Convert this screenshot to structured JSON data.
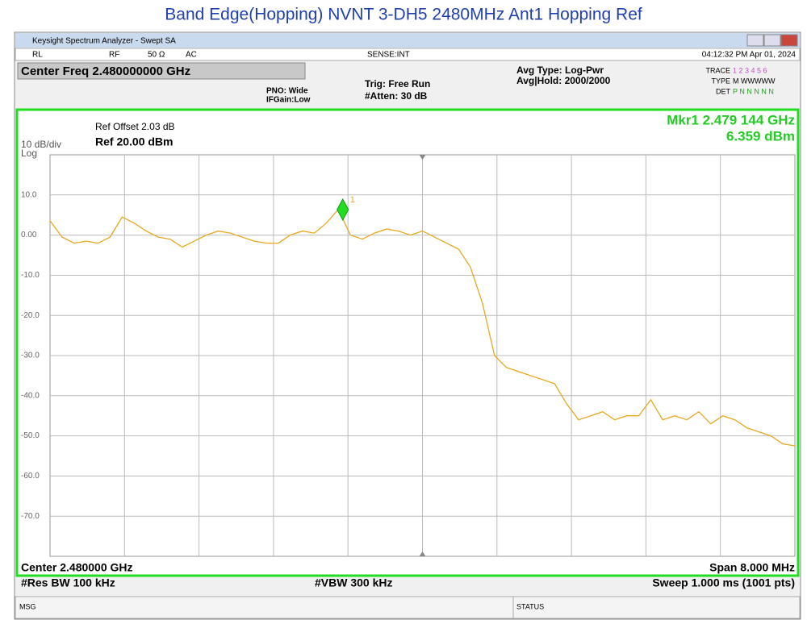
{
  "title": "Band Edge(Hopping) NVNT 3-DH5 2480MHz Ant1 Hopping Ref",
  "screen": {
    "window_title": "Keysight Spectrum Analyzer - Swept SA",
    "status_row": {
      "rl": "RL",
      "rf": "RF",
      "impedance": "50 Ω",
      "coupling": "AC",
      "sense": "SENSE:INT",
      "datetime": "04:12:32 PM Apr 01, 2024"
    },
    "center_freq": "Center Freq 2.480000000 GHz",
    "pno": "PNO: Wide",
    "ifgain": "IFGain:Low",
    "trig": "Trig: Free Run",
    "atten": "#Atten: 30 dB",
    "avg_type": "Avg Type: Log-Pwr",
    "avg_hold": "Avg|Hold: 2000/2000",
    "trace_info": {
      "trace_label": "TRACE",
      "trace": "1 2 3 4 5 6",
      "type_label": "TYPE",
      "type": "M WWWWW",
      "det_label": "DET",
      "det": "P N N N N N"
    },
    "ref_offset": "Ref Offset 2.03 dB",
    "scale": "10 dB/div",
    "log": "Log",
    "ref_level": "Ref 20.00 dBm",
    "marker": {
      "name": "1",
      "label": "Mkr1 2.479 144 GHz",
      "amplitude_label": "6.359 dBm",
      "frequency": 2.479144,
      "amplitude": 6.359
    },
    "plot": {
      "xlim": [
        2.476,
        2.484
      ],
      "ylim": [
        -80,
        20
      ],
      "yticks": [
        {
          "value": 10,
          "label": "10.0"
        },
        {
          "value": 0,
          "label": "0.00"
        },
        {
          "value": -10,
          "label": "-10.0"
        },
        {
          "value": -20,
          "label": "-20.0"
        },
        {
          "value": -30,
          "label": "-30.0"
        },
        {
          "value": -40,
          "label": "-40.0"
        },
        {
          "value": -50,
          "label": "-50.0"
        },
        {
          "value": -60,
          "label": "-60.0"
        },
        {
          "value": -70,
          "label": "-70.0"
        }
      ],
      "trace": {
        "color": "#e8a820",
        "values": [
          3.6,
          -0.5,
          -2,
          -1.5,
          -2,
          -0.5,
          4.5,
          3,
          1,
          -0.5,
          -1,
          -3,
          -1.5,
          0,
          1,
          0.5,
          -0.5,
          -1.5,
          -2,
          -2,
          0,
          1,
          0.5,
          3,
          6.4,
          0,
          -1,
          0.5,
          1.5,
          1,
          0,
          1,
          -0.5,
          -2,
          -3.5,
          -8,
          -17,
          -30,
          -33,
          -34,
          -35,
          -36,
          -37,
          -42,
          -46,
          -45,
          -44,
          -46,
          -45,
          -45,
          -41,
          -46,
          -45,
          -46,
          -44,
          -47,
          -45,
          -46,
          -48,
          -49,
          -50,
          -52,
          -52.5
        ]
      }
    },
    "footer": {
      "center": "Center 2.480000 GHz",
      "rbw": "#Res BW 100 kHz",
      "vbw": "#VBW 300 kHz",
      "span": "Span 8.000 MHz",
      "sweep": "Sweep  1.000 ms (1001 pts)"
    },
    "msg": "MSG",
    "status": "STATUS"
  }
}
